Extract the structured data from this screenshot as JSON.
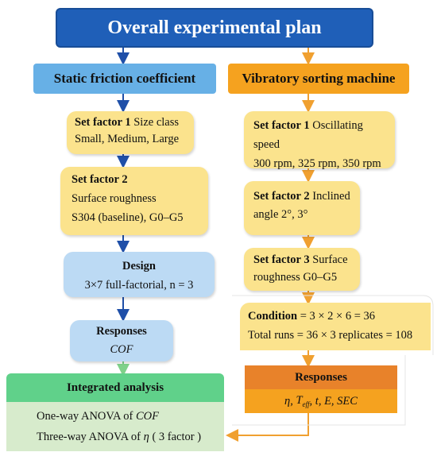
{
  "title": "Overall experimental plan",
  "left": {
    "header": "Static friction coefficient",
    "factor1": {
      "label": "Set factor 1",
      "text1": "Size class",
      "text2": "Small, Medium, Large"
    },
    "factor2": {
      "label": "Set factor 2",
      "text1": "Surface roughness",
      "text2": "S304 (baseline), G0–G5"
    },
    "design": {
      "label": "Design",
      "text": "3×7 full-factorial, n = 3"
    },
    "responses": {
      "label": "Responses",
      "text": "COF"
    }
  },
  "right": {
    "header": "Vibratory sorting machine",
    "factor1": {
      "label": "Set factor 1",
      "text1": "Oscillating speed",
      "text2": "300 rpm, 325 rpm, 350 rpm"
    },
    "factor2": {
      "label": "Set factor 2",
      "text1": "Inclined",
      "text2": "angle 2°, 3°"
    },
    "factor3": {
      "label": "Set factor 3",
      "text1": "Surface",
      "text2": "roughness G0–G5"
    },
    "condition": {
      "label": "Condition",
      "text1": "= 3 × 2 × 6 = 36",
      "text2": "Total runs = 36 × 3 replicates = 108"
    },
    "responses": {
      "label": "Responses",
      "eta": "η,",
      "t_main": "T",
      "t_sub": "eff",
      "rest": ", t, E, SEC"
    }
  },
  "integrated": {
    "header": "Integrated analysis",
    "line1_prefix": "One-way ANOVA of",
    "line1_var": "COF",
    "line2_prefix": "Three-way ANOVA of",
    "line2_var": "η",
    "line2_suffix": "( 3 factor )"
  },
  "colors": {
    "title_bg": "#1f5fb8",
    "left_header": "#67b0e6",
    "right_header": "#f5a21f",
    "yellow_box": "#fbe38d",
    "blue_box": "#bcdaf4",
    "green_header": "#60d18a",
    "green_body": "#d7ebcc",
    "orange_dark": "#e8822a",
    "arrow_blue": "#1f4fa8",
    "arrow_orange": "#f0a030",
    "arrow_green": "#7fd18a"
  }
}
